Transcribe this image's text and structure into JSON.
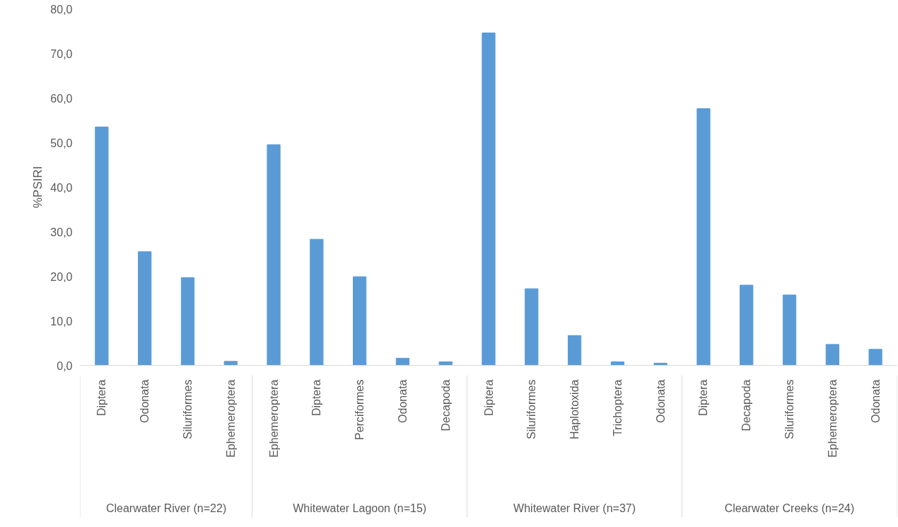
{
  "chart_data": {
    "type": "bar",
    "ylabel": "%PSIRI",
    "categories": [
      "Diptera",
      "Odonata",
      "Siluriformes",
      "Ephemeroptera",
      "Ephemeroptera",
      "Diptera",
      "Perciformes",
      "Odonata",
      "Decapoda",
      "Diptera",
      "Siluriformes",
      "Haplotoxida",
      "Trichoptera",
      "Odonata",
      "Diptera",
      "Decapoda",
      "Siluriformes",
      "Ephemeroptera",
      "Odonata"
    ],
    "series": [
      {
        "color": "#5b9bd5",
        "values": [
          53.5,
          25.5,
          19.7,
          0.9,
          null,
          null,
          null,
          null,
          null,
          null,
          null,
          null,
          null,
          null,
          null,
          null,
          null,
          null,
          null
        ]
      },
      {
        "color": "#5b9bd5",
        "values": [
          null,
          null,
          null,
          null,
          49.5,
          28.3,
          19.9,
          1.6,
          0.8,
          null,
          null,
          null,
          null,
          null,
          null,
          null,
          null,
          null,
          null
        ]
      },
      {
        "color": "#5b9bd5",
        "values": [
          null,
          null,
          null,
          null,
          null,
          null,
          null,
          null,
          null,
          74.6,
          17.2,
          6.7,
          0.8,
          0.5,
          null,
          null,
          null,
          null,
          null
        ]
      },
      {
        "color": "#5b9bd5",
        "values": [
          null,
          null,
          null,
          null,
          null,
          null,
          null,
          null,
          null,
          null,
          null,
          null,
          null,
          null,
          57.6,
          18.0,
          15.8,
          4.7,
          3.6
        ]
      }
    ],
    "annotations": [
      "Clearwater River (n=22)",
      "Whitewater Lagoon (n=15)",
      "Whitewater River (n=37)",
      "Clearwater Creeks (n=24)"
    ],
    "ylim": [
      0,
      80
    ],
    "yticks": [
      {
        "value": 0,
        "label": "0,0"
      },
      {
        "value": 10,
        "label": "10,0"
      },
      {
        "value": 20,
        "label": "20,0"
      },
      {
        "value": 30,
        "label": "30,0"
      },
      {
        "value": 40,
        "label": "40,0"
      },
      {
        "value": 50,
        "label": "50,0"
      },
      {
        "value": 60,
        "label": "60,0"
      },
      {
        "value": 70,
        "label": "70,0"
      },
      {
        "value": 80,
        "label": "80,0"
      }
    ],
    "grid": false
  }
}
